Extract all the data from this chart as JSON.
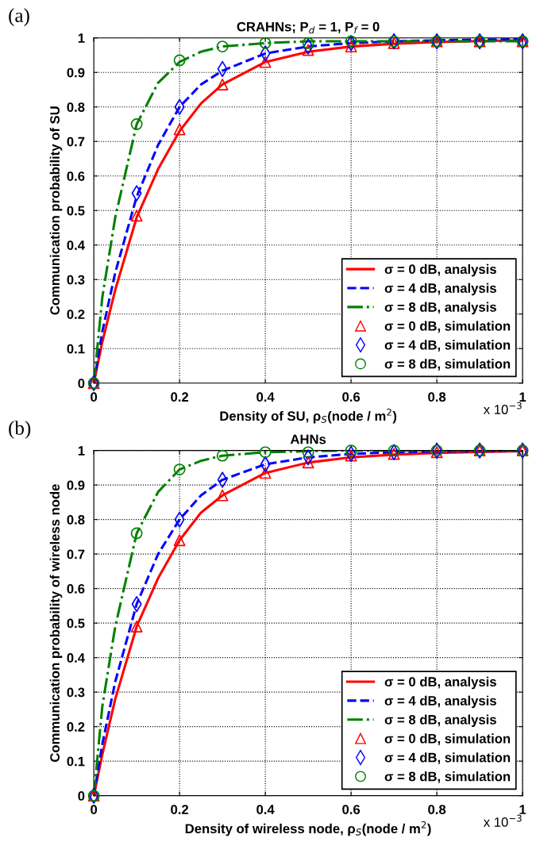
{
  "chart_data": [
    {
      "type": "line",
      "title": "CRAHNs; P$_{d}$ = 1, P$_{f}$ = 0",
      "xlabel": "Density of SU, ρ$_{S}$(node / m$^{2}$)",
      "ylabel": "Communication probability of SU",
      "annotations": [
        "(a)",
        "x 10$^{−3}$"
      ],
      "xlim": [
        0,
        1
      ],
      "xticks": [
        0,
        0.2,
        0.4,
        0.6,
        0.8,
        1
      ],
      "ylim": [
        0,
        1
      ],
      "yticks": [
        0,
        0.1,
        0.2,
        0.3,
        0.4,
        0.5,
        0.6,
        0.7,
        0.8,
        0.9,
        1
      ],
      "grid": true,
      "legend": "lower right",
      "series": [
        {
          "name": "σ = 0 dB, analysis",
          "color": "#ff0000",
          "line_style": "solid",
          "marker": "none",
          "x": [
            0,
            0.02,
            0.05,
            0.1,
            0.15,
            0.2,
            0.25,
            0.3,
            0.4,
            0.5,
            0.6,
            0.7,
            0.8,
            0.9,
            1
          ],
          "values": [
            0,
            0.12,
            0.27,
            0.48,
            0.62,
            0.73,
            0.81,
            0.865,
            0.93,
            0.96,
            0.975,
            0.983,
            0.988,
            0.991,
            0.993
          ]
        },
        {
          "type": "line",
          "name": "σ = 4 dB, analysis",
          "color": "#0000ff",
          "line_style": "dashed",
          "marker": "none",
          "x": [
            0,
            0.02,
            0.05,
            0.1,
            0.15,
            0.2,
            0.25,
            0.3,
            0.4,
            0.5,
            0.6,
            0.7,
            0.8,
            0.9,
            1
          ],
          "values": [
            0,
            0.15,
            0.32,
            0.54,
            0.69,
            0.8,
            0.865,
            0.905,
            0.955,
            0.975,
            0.985,
            0.99,
            0.993,
            0.995,
            0.996
          ]
        },
        {
          "type": "line",
          "name": "σ = 8 dB, analysis",
          "color": "#008000",
          "line_style": "dashdot",
          "marker": "none",
          "x": [
            0,
            0.02,
            0.05,
            0.1,
            0.15,
            0.2,
            0.25,
            0.3,
            0.4,
            0.5,
            0.6,
            0.7,
            0.8,
            0.9,
            1
          ],
          "values": [
            0,
            0.25,
            0.48,
            0.75,
            0.87,
            0.93,
            0.96,
            0.975,
            0.985,
            0.99,
            0.99,
            0.99,
            0.99,
            0.99,
            0.99
          ]
        },
        {
          "type": "scatter",
          "name": "σ = 0 dB, simulation",
          "color": "#ff0000",
          "marker": "triangle",
          "x": [
            0,
            0.1,
            0.2,
            0.3,
            0.4,
            0.5,
            0.6,
            0.7,
            0.8,
            0.9,
            1
          ],
          "values": [
            0,
            0.485,
            0.735,
            0.865,
            0.93,
            0.965,
            0.975,
            0.985,
            0.99,
            0.99,
            0.99
          ]
        },
        {
          "type": "scatter",
          "name": "σ = 4 dB, simulation",
          "color": "#0000ff",
          "marker": "diamond",
          "x": [
            0,
            0.1,
            0.2,
            0.3,
            0.4,
            0.5,
            0.6,
            0.7,
            0.8,
            0.9,
            1
          ],
          "values": [
            0,
            0.55,
            0.8,
            0.91,
            0.955,
            0.975,
            0.985,
            0.99,
            0.99,
            0.99,
            0.99
          ]
        },
        {
          "type": "scatter",
          "name": "σ = 8 dB, simulation",
          "color": "#008000",
          "marker": "circle",
          "x": [
            0,
            0.1,
            0.2,
            0.3,
            0.4,
            0.5,
            0.6,
            0.7,
            0.8,
            0.9,
            1
          ],
          "values": [
            0,
            0.75,
            0.935,
            0.975,
            0.985,
            0.985,
            0.99,
            0.99,
            0.99,
            0.99,
            0.99
          ]
        }
      ]
    },
    {
      "type": "line",
      "title": "AHNs",
      "xlabel": "Density of wireless node, ρ$_{S}$(node / m$^{2}$)",
      "ylabel": "Communication probability of wireless node",
      "annotations": [
        "(b)",
        "x 10$^{−3}$"
      ],
      "xlim": [
        0,
        1
      ],
      "xticks": [
        0,
        0.2,
        0.4,
        0.6,
        0.8,
        1
      ],
      "ylim": [
        0,
        1
      ],
      "yticks": [
        0,
        0.1,
        0.2,
        0.3,
        0.4,
        0.5,
        0.6,
        0.7,
        0.8,
        0.9,
        1
      ],
      "grid": true,
      "legend": "lower right",
      "series": [
        {
          "name": "σ = 0 dB, analysis",
          "color": "#ff0000",
          "line_style": "solid",
          "marker": "none",
          "x": [
            0,
            0.02,
            0.05,
            0.1,
            0.15,
            0.2,
            0.25,
            0.3,
            0.4,
            0.5,
            0.6,
            0.7,
            0.8,
            0.9,
            1
          ],
          "values": [
            0,
            0.12,
            0.28,
            0.49,
            0.63,
            0.74,
            0.82,
            0.87,
            0.935,
            0.965,
            0.98,
            0.988,
            0.993,
            0.996,
            0.998
          ]
        },
        {
          "type": "line",
          "name": "σ = 4 dB, analysis",
          "color": "#0000ff",
          "line_style": "dashed",
          "marker": "none",
          "x": [
            0,
            0.02,
            0.05,
            0.1,
            0.15,
            0.2,
            0.25,
            0.3,
            0.4,
            0.5,
            0.6,
            0.7,
            0.8,
            0.9,
            1
          ],
          "values": [
            0,
            0.15,
            0.33,
            0.555,
            0.7,
            0.8,
            0.87,
            0.915,
            0.96,
            0.98,
            0.99,
            0.995,
            0.997,
            0.998,
            0.999
          ]
        },
        {
          "type": "line",
          "name": "σ = 8 dB, analysis",
          "color": "#008000",
          "line_style": "dashdot",
          "marker": "none",
          "x": [
            0,
            0.02,
            0.05,
            0.1,
            0.15,
            0.2,
            0.25,
            0.3,
            0.4,
            0.5,
            0.6,
            0.7,
            0.8,
            0.9,
            1
          ],
          "values": [
            0,
            0.26,
            0.49,
            0.76,
            0.88,
            0.945,
            0.97,
            0.985,
            0.995,
            0.998,
            1,
            1,
            1,
            1,
            1
          ]
        },
        {
          "type": "scatter",
          "name": "σ = 0 dB, simulation",
          "color": "#ff0000",
          "marker": "triangle",
          "x": [
            0,
            0.1,
            0.2,
            0.3,
            0.4,
            0.5,
            0.6,
            0.7,
            0.8,
            0.9,
            1
          ],
          "values": [
            0,
            0.49,
            0.74,
            0.87,
            0.935,
            0.965,
            0.985,
            0.99,
            0.995,
            1,
            1
          ]
        },
        {
          "type": "scatter",
          "name": "σ = 4 dB, simulation",
          "color": "#0000ff",
          "marker": "diamond",
          "x": [
            0,
            0.1,
            0.2,
            0.3,
            0.4,
            0.5,
            0.6,
            0.7,
            0.8,
            0.9,
            1
          ],
          "values": [
            0,
            0.555,
            0.8,
            0.915,
            0.96,
            0.98,
            0.99,
            0.995,
            1,
            1,
            1
          ]
        },
        {
          "type": "scatter",
          "name": "σ = 8 dB, simulation",
          "color": "#008000",
          "marker": "circle",
          "x": [
            0,
            0.1,
            0.2,
            0.3,
            0.4,
            0.5,
            0.6,
            0.7,
            0.8,
            0.9,
            1
          ],
          "values": [
            0,
            0.76,
            0.945,
            0.985,
            0.995,
            0.995,
            1,
            1,
            1,
            1,
            1
          ]
        }
      ]
    }
  ]
}
